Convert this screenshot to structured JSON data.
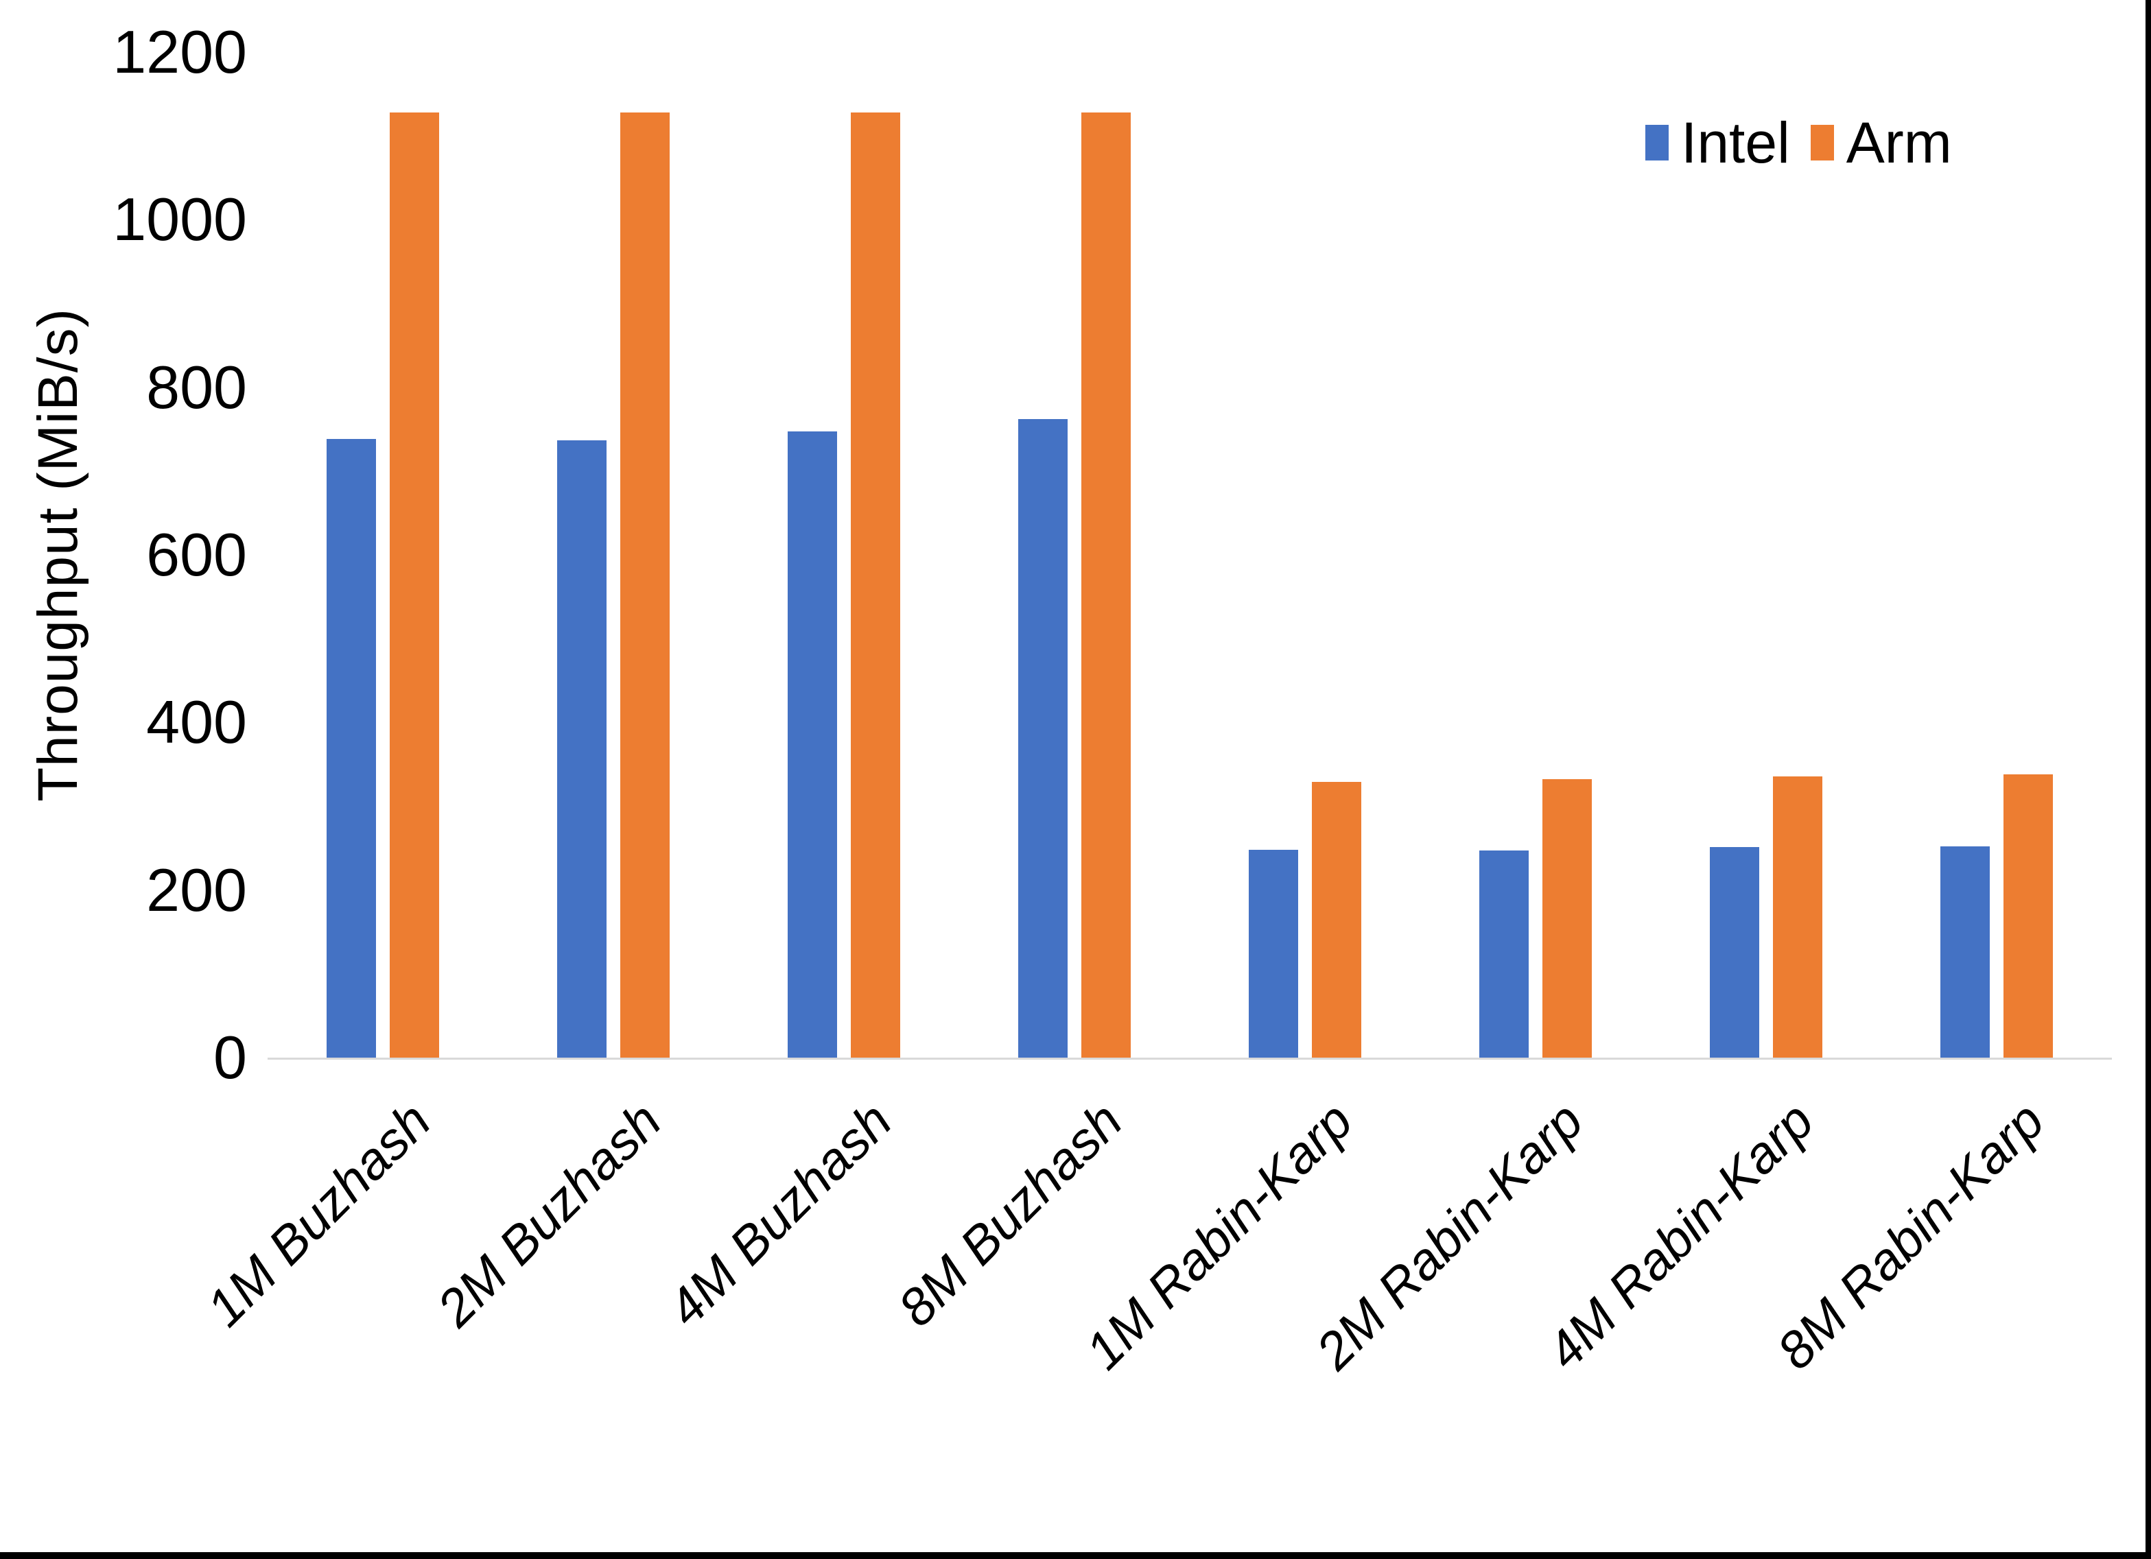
{
  "page": {
    "background": "#FFFFFF",
    "edge_border_color": "#000000"
  },
  "chart_data": {
    "type": "bar",
    "title": "",
    "ylabel": "Throughput (MiB/s)",
    "xlabel": "",
    "ylim": [
      0,
      1200
    ],
    "yticks": [
      0,
      200,
      400,
      600,
      800,
      1000,
      1200
    ],
    "grid": false,
    "legend_position": "top-right",
    "axis_line_color": "#D9D9D9",
    "text_color": "#000000",
    "categories": [
      "1M Buzhash",
      "2M Buzhash",
      "4M Buzhash",
      "8M Buzhash",
      "1M Rabin-Karp",
      "2M Rabin-Karp",
      "4M Rabin-Karp",
      "8M Rabin-Karp"
    ],
    "series": [
      {
        "name": "Intel",
        "color": "#4472C4",
        "values": [
          738,
          737,
          747,
          762,
          248,
          247,
          251,
          252
        ]
      },
      {
        "name": "Arm",
        "color": "#ED7D31",
        "values": [
          1128,
          1128,
          1128,
          1128,
          329,
          332,
          336,
          338
        ]
      }
    ]
  }
}
